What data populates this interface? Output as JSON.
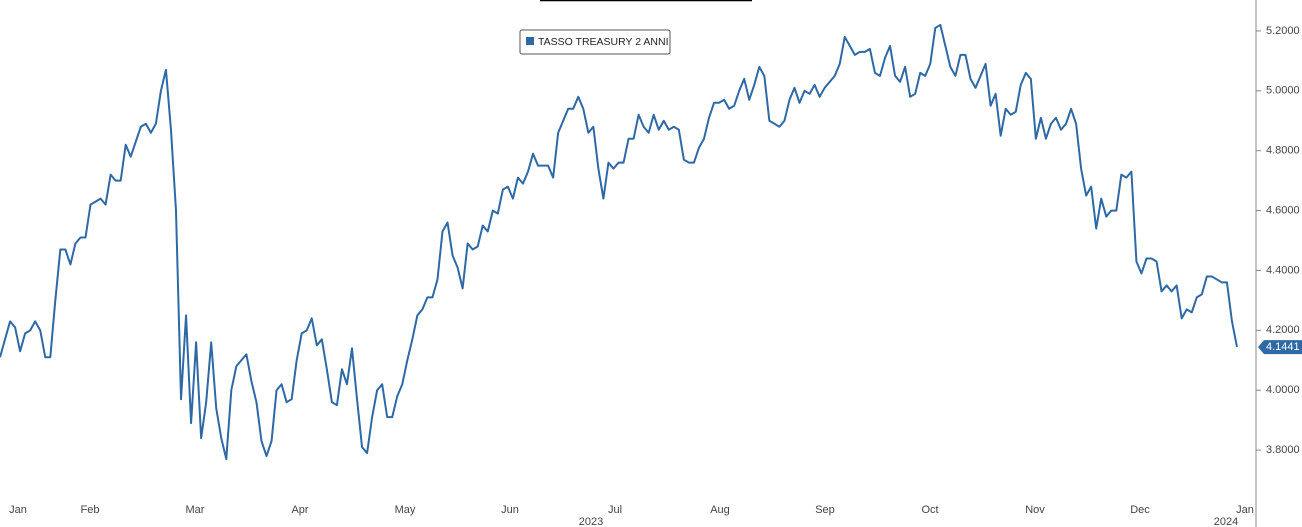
{
  "chart_data": {
    "type": "line",
    "x_labels": [
      "Jan",
      "Feb",
      "Mar",
      "Apr",
      "May",
      "Jun",
      "Jul",
      "Aug",
      "Sep",
      "Oct",
      "Nov",
      "Dec",
      "Jan"
    ],
    "year_labels": [
      "2023",
      "2024"
    ],
    "series": [
      {
        "name": "TASSO TREASURY 2 ANNI",
        "color": "#2e69a6",
        "values": [
          4.11,
          4.17,
          4.23,
          4.21,
          4.13,
          4.19,
          4.2,
          4.23,
          4.2,
          4.11,
          4.11,
          4.3,
          4.47,
          4.47,
          4.42,
          4.49,
          4.51,
          4.51,
          4.62,
          4.63,
          4.64,
          4.62,
          4.72,
          4.7,
          4.7,
          4.82,
          4.78,
          4.83,
          4.88,
          4.89,
          4.86,
          4.89,
          5.0,
          5.07,
          4.87,
          4.6,
          3.97,
          4.25,
          3.89,
          4.16,
          3.84,
          3.96,
          4.16,
          3.94,
          3.84,
          3.77,
          4.0,
          4.08,
          4.1,
          4.12,
          4.03,
          3.96,
          3.83,
          3.78,
          3.83,
          4.0,
          4.02,
          3.96,
          3.97,
          4.1,
          4.19,
          4.2,
          4.24,
          4.15,
          4.17,
          4.07,
          3.96,
          3.95,
          4.07,
          4.02,
          4.14,
          3.97,
          3.81,
          3.79,
          3.91,
          4.0,
          4.02,
          3.91,
          3.91,
          3.98,
          4.02,
          4.1,
          4.17,
          4.25,
          4.27,
          4.31,
          4.31,
          4.37,
          4.53,
          4.56,
          4.45,
          4.41,
          4.34,
          4.49,
          4.47,
          4.48,
          4.55,
          4.53,
          4.6,
          4.59,
          4.67,
          4.68,
          4.64,
          4.71,
          4.69,
          4.73,
          4.79,
          4.75,
          4.75,
          4.75,
          4.71,
          4.86,
          4.9,
          4.94,
          4.94,
          4.98,
          4.94,
          4.86,
          4.88,
          4.74,
          4.64,
          4.76,
          4.74,
          4.76,
          4.76,
          4.84,
          4.84,
          4.92,
          4.88,
          4.86,
          4.92,
          4.87,
          4.9,
          4.87,
          4.88,
          4.87,
          4.77,
          4.76,
          4.76,
          4.81,
          4.84,
          4.91,
          4.96,
          4.96,
          4.97,
          4.94,
          4.95,
          5.0,
          5.04,
          4.97,
          5.02,
          5.08,
          5.05,
          4.9,
          4.89,
          4.88,
          4.9,
          4.97,
          5.01,
          4.96,
          5.0,
          4.99,
          5.02,
          4.98,
          5.01,
          5.03,
          5.05,
          5.09,
          5.18,
          5.15,
          5.12,
          5.13,
          5.13,
          5.14,
          5.06,
          5.05,
          5.11,
          5.15,
          5.05,
          5.03,
          5.08,
          4.98,
          4.99,
          5.06,
          5.05,
          5.09,
          5.21,
          5.22,
          5.15,
          5.08,
          5.05,
          5.12,
          5.12,
          5.04,
          5.01,
          5.05,
          5.09,
          4.95,
          4.99,
          4.85,
          4.94,
          4.92,
          4.93,
          5.02,
          5.06,
          5.04,
          4.84,
          4.91,
          4.84,
          4.89,
          4.91,
          4.87,
          4.89,
          4.94,
          4.89,
          4.74,
          4.65,
          4.68,
          4.54,
          4.64,
          4.58,
          4.6,
          4.6,
          4.72,
          4.71,
          4.73,
          4.43,
          4.39,
          4.44,
          4.44,
          4.43,
          4.33,
          4.35,
          4.33,
          4.35,
          4.24,
          4.27,
          4.26,
          4.31,
          4.32,
          4.38,
          4.38,
          4.37,
          4.36,
          4.36,
          4.23,
          4.1441
        ]
      }
    ],
    "last_value_label": "4.1441",
    "ylim": [
      3.65,
      5.3
    ],
    "yticks": [
      {
        "value": 3.8,
        "label": "3.8000"
      },
      {
        "value": 4.0,
        "label": "4.0000"
      },
      {
        "value": 4.2,
        "label": "4.2000"
      },
      {
        "value": 4.4,
        "label": "4.4000"
      },
      {
        "value": 4.6,
        "label": "4.6000"
      },
      {
        "value": 4.8,
        "label": "4.8000"
      },
      {
        "value": 5.0,
        "label": "5.0000"
      },
      {
        "value": 5.2,
        "label": "5.2000"
      }
    ]
  }
}
